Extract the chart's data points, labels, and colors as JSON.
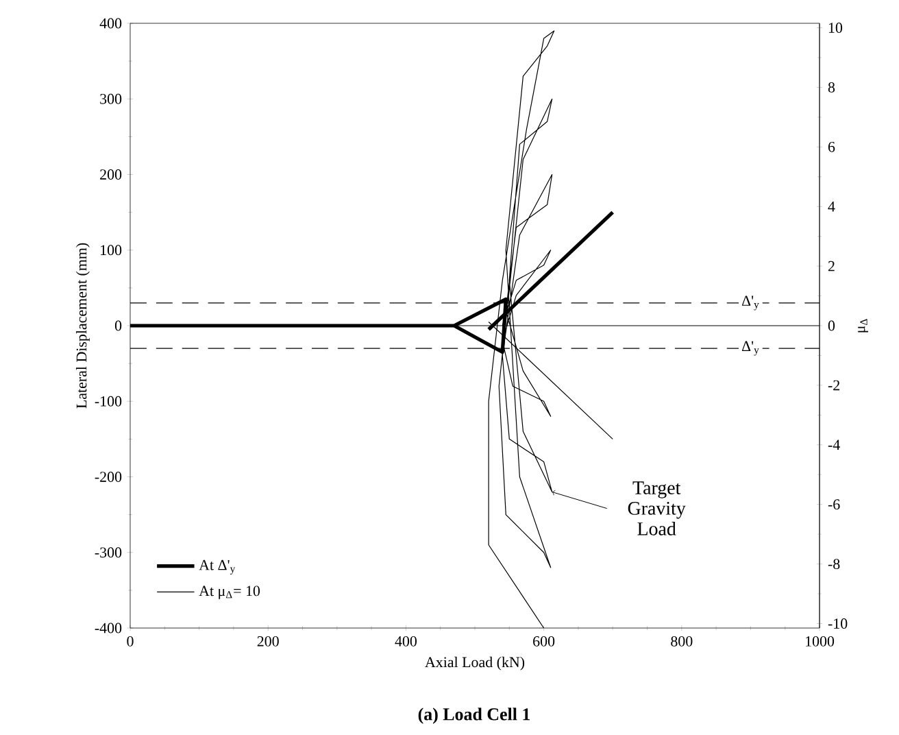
{
  "chart_data": {
    "type": "line",
    "title": "(a) Load Cell 1",
    "xlabel": "Axial Load (kN)",
    "ylabel": "Lateral Displacement (mm)",
    "y2label": "μ$_{Δ}$",
    "xlim": [
      0,
      1000
    ],
    "xticks": [
      0,
      200,
      400,
      600,
      800,
      1000
    ],
    "ylim": [
      -400,
      400
    ],
    "yticks": [
      -400,
      -300,
      -200,
      -100,
      0,
      100,
      200,
      300,
      400
    ],
    "y2lim": [
      -10.15,
      10.15
    ],
    "y2ticks": [
      -10,
      -8,
      -6,
      -4,
      -2,
      0,
      2,
      4,
      6,
      8,
      10
    ],
    "series": [
      {
        "name": "At Δ'$_{y}$",
        "color": "#000000",
        "line_style": "solid",
        "x": [
          0,
          470,
          545,
          540,
          470
        ],
        "values": [
          0,
          0,
          35,
          -35,
          0
        ]
      },
      {
        "color": "#000000",
        "line_style": "solid",
        "x": [
          520,
          700
        ],
        "values": [
          -5,
          150
        ]
      },
      {
        "name": "At μ$_{Δ}$= 10",
        "color": "#000000",
        "line_style": "solid",
        "x": [
          540,
          560,
          600,
          610,
          560,
          540,
          555,
          600,
          610,
          570,
          545,
          560,
          605,
          612,
          565,
          540,
          550,
          600,
          612,
          570,
          550,
          565,
          605,
          612,
          570,
          535,
          545,
          600,
          610,
          565,
          545,
          570,
          605,
          615,
          600,
          575,
          540,
          520,
          520,
          600
        ],
        "values": [
          0,
          60,
          80,
          100,
          40,
          -20,
          -80,
          -100,
          -120,
          -60,
          20,
          130,
          160,
          200,
          120,
          -40,
          -150,
          -180,
          -220,
          -140,
          60,
          240,
          270,
          300,
          220,
          -80,
          -250,
          -300,
          -320,
          -200,
          100,
          330,
          370,
          390,
          380,
          260,
          60,
          -100,
          -290,
          -400
        ]
      },
      {
        "color": "#000000",
        "line_style": "solid",
        "x": [
          520,
          700
        ],
        "values": [
          5,
          -150
        ]
      }
    ],
    "ref_lines": [
      {
        "axis": "y",
        "value": 30,
        "label": "Δ'$_{y}$",
        "line_style": "dashed"
      },
      {
        "axis": "y",
        "value": -30,
        "label": "Δ'$_{y}$",
        "line_style": "dashed"
      },
      {
        "axis": "y",
        "value": 0,
        "line_style": "solid"
      }
    ],
    "annotations": [
      {
        "text": "Target Gravity Load",
        "x": 612,
        "y": -220
      }
    ],
    "legend": "bottom left",
    "grid": false,
    "marker": "none"
  }
}
